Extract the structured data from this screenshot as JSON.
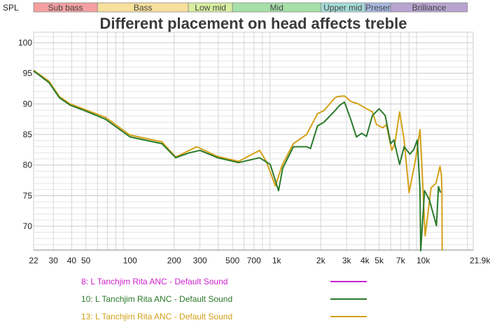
{
  "chart_data": {
    "type": "line",
    "title": "Different placement on head affects treble",
    "ylabel": "SPL",
    "x_scale": "log",
    "xlim": [
      22,
      21900
    ],
    "ylim": [
      66,
      101.7
    ],
    "grid": true,
    "x_ticks": [
      {
        "v": 22,
        "label": "22"
      },
      {
        "v": 30,
        "label": "30"
      },
      {
        "v": 40,
        "label": "40"
      },
      {
        "v": 50,
        "label": "50"
      },
      {
        "v": 100,
        "label": "100"
      },
      {
        "v": 200,
        "label": "200"
      },
      {
        "v": 300,
        "label": "300"
      },
      {
        "v": 500,
        "label": "500"
      },
      {
        "v": 700,
        "label": "700"
      },
      {
        "v": 1000,
        "label": "1k"
      },
      {
        "v": 2000,
        "label": "2k"
      },
      {
        "v": 3000,
        "label": "3k"
      },
      {
        "v": 4000,
        "label": "4k"
      },
      {
        "v": 5000,
        "label": "5k"
      },
      {
        "v": 7000,
        "label": "7k"
      },
      {
        "v": 10000,
        "label": "10k"
      },
      {
        "v": 21900,
        "label": "21.9kHz"
      }
    ],
    "y_ticks": [
      70,
      75,
      80,
      85,
      90,
      95,
      100
    ],
    "bands": [
      {
        "label": "Sub bass",
        "from": 20,
        "to": 60,
        "color": "#f4a0a0"
      },
      {
        "label": "Bass",
        "from": 60,
        "to": 250,
        "color": "#f7df9c"
      },
      {
        "label": "Low mid",
        "from": 250,
        "to": 500,
        "color": "#d8eea0"
      },
      {
        "label": "Mid",
        "from": 500,
        "to": 2000,
        "color": "#a6e0a8"
      },
      {
        "label": "Upper mid",
        "from": 2000,
        "to": 4000,
        "color": "#a4dcd8"
      },
      {
        "label": "Presence",
        "display": "Preser",
        "from": 4000,
        "to": 6000,
        "color": "#a8b8e0"
      },
      {
        "label": "Brilliance",
        "from": 6000,
        "to": 20000,
        "color": "#b8a4d0"
      }
    ],
    "series": [
      {
        "name": "8: L Tanchjim Rita ANC - Default Sound",
        "color": "#cc22cc",
        "x": [],
        "y": []
      },
      {
        "name": "10: L Tanchjim Rita ANC - Default Sound",
        "color": "#2a7a2a",
        "x": [
          22,
          28,
          33,
          39,
          49,
          68,
          100,
          165,
          205,
          254,
          300,
          396,
          550,
          765,
          905,
          1030,
          1100,
          1300,
          1600,
          1700,
          1900,
          2100,
          2500,
          2700,
          2900,
          3200,
          3500,
          3800,
          4100,
          4500,
          5000,
          5500,
          6000,
          6300,
          6900,
          7400,
          8100,
          8600,
          9100,
          9500,
          9600,
          10200,
          11000,
          12300,
          12700,
          13100
        ],
        "y": [
          95.4,
          93.5,
          91,
          89.8,
          88.9,
          87.5,
          84.6,
          83.5,
          81.2,
          82,
          82.4,
          81.2,
          80.4,
          81.2,
          80.1,
          75.8,
          79.5,
          83,
          83,
          82.7,
          86.4,
          87,
          88.9,
          89.8,
          90.3,
          87.5,
          84.6,
          85.2,
          84.7,
          88.1,
          89.2,
          88.1,
          83.5,
          84.1,
          80.1,
          83,
          81.8,
          82.5,
          84.1,
          76,
          66,
          75.8,
          74.3,
          70.1,
          76.5,
          75.5
        ]
      },
      {
        "name": "13: L Tanchjim Rita ANC - Default Sound",
        "color": "#d4a017",
        "x": [
          22,
          28,
          33,
          39,
          49,
          68,
          100,
          165,
          205,
          254,
          285,
          396,
          550,
          765,
          850,
          980,
          1090,
          1300,
          1600,
          1900,
          2100,
          2500,
          2600,
          2900,
          3200,
          3600,
          4100,
          4500,
          4800,
          5300,
          5600,
          6100,
          6400,
          6900,
          7400,
          8000,
          8900,
          9500,
          9800,
          10300,
          11300,
          12200,
          13000,
          13300,
          13400,
          13450
        ],
        "y": [
          95.5,
          93.7,
          91.2,
          90,
          89.1,
          87.8,
          84.9,
          83.8,
          81.3,
          82.4,
          83,
          81.4,
          80.6,
          82.4,
          80.6,
          76.6,
          80,
          83.5,
          85,
          88.4,
          88.9,
          91,
          91.2,
          91.3,
          90.4,
          90,
          89.2,
          88.7,
          86.6,
          86.1,
          86.6,
          82.4,
          83.5,
          88.7,
          84.1,
          75.5,
          81.2,
          85.8,
          79.5,
          68.4,
          76.3,
          77,
          79.8,
          78.3,
          75.8,
          66
        ]
      }
    ],
    "legend_placement": "bottom-left"
  }
}
